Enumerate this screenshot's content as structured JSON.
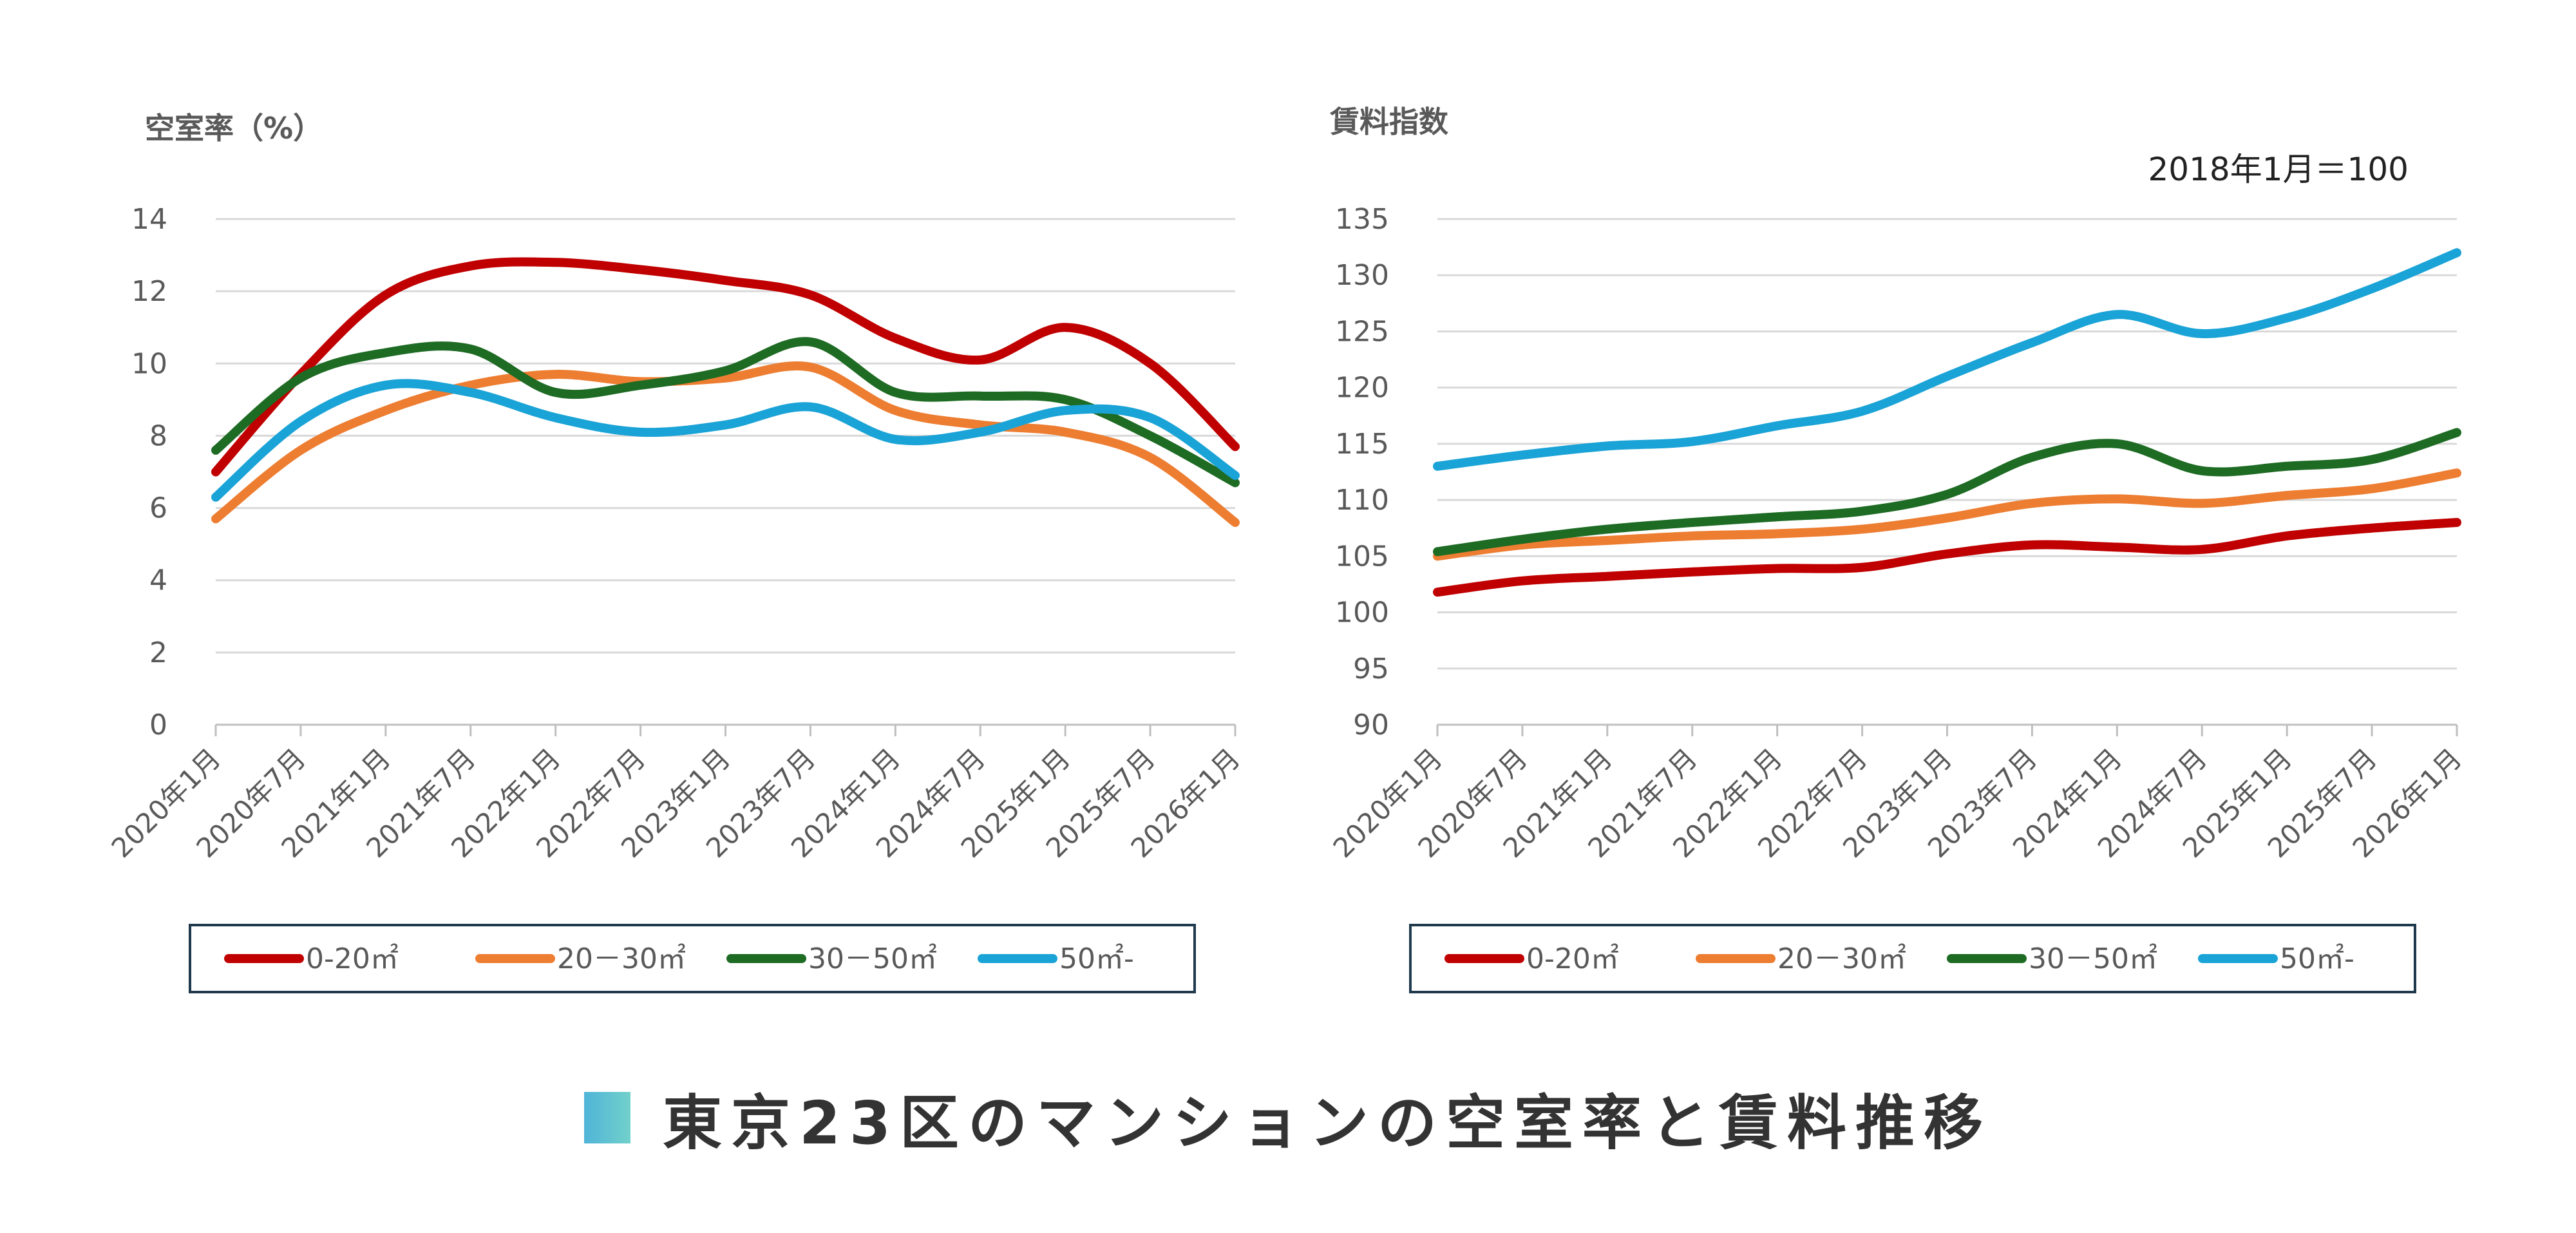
{
  "chart_data": [
    {
      "type": "line",
      "ylabel": "空室率（%）",
      "ylim": [
        0,
        14
      ],
      "yticks": [
        "0",
        "2",
        "4",
        "6",
        "8",
        "10",
        "12",
        "14"
      ],
      "x": [
        "2020年1月",
        "2020年7月",
        "2021年1月",
        "2021年7月",
        "2022年1月",
        "2022年7月",
        "2023年1月",
        "2023年7月",
        "2024年1月",
        "2024年7月",
        "2025年1月",
        "2025年7月",
        "2026年1月"
      ],
      "grid": true,
      "legend": "bottom",
      "series": [
        {
          "name": "0-20㎡",
          "color": "#c00000",
          "values": [
            7.0,
            9.7,
            11.9,
            12.7,
            12.8,
            12.6,
            12.3,
            11.9,
            10.7,
            10.1,
            11.0,
            10.0,
            7.7
          ]
        },
        {
          "name": "20－30㎡",
          "color": "#ed7d31",
          "values": [
            5.7,
            7.6,
            8.7,
            9.4,
            9.7,
            9.5,
            9.6,
            9.9,
            8.7,
            8.3,
            8.1,
            7.4,
            5.6
          ]
        },
        {
          "name": "30－50㎡",
          "color": "#1e6b24",
          "values": [
            7.6,
            9.6,
            10.3,
            10.4,
            9.2,
            9.4,
            9.8,
            10.6,
            9.2,
            9.1,
            9.0,
            8.0,
            6.7
          ]
        },
        {
          "name": "50㎡-",
          "color": "#1aa3d6",
          "values": [
            6.3,
            8.4,
            9.4,
            9.2,
            8.5,
            8.1,
            8.3,
            8.8,
            7.9,
            8.1,
            8.7,
            8.5,
            6.9
          ]
        }
      ]
    },
    {
      "type": "line",
      "ylabel": "賃料指数",
      "annotation": "2018年1月＝100",
      "ylim": [
        90,
        135
      ],
      "yticks": [
        "90",
        "95",
        "100",
        "105",
        "110",
        "115",
        "120",
        "125",
        "130",
        "135"
      ],
      "x": [
        "2020年1月",
        "2020年7月",
        "2021年1月",
        "2021年7月",
        "2022年1月",
        "2022年7月",
        "2023年1月",
        "2023年7月",
        "2024年1月",
        "2024年7月",
        "2025年1月",
        "2025年7月",
        "2026年1月"
      ],
      "grid": true,
      "legend": "bottom",
      "series": [
        {
          "name": "0-20㎡",
          "color": "#c00000",
          "values": [
            101.8,
            102.8,
            103.2,
            103.6,
            103.9,
            104.0,
            105.2,
            106.0,
            105.8,
            105.6,
            106.8,
            107.5,
            108.0
          ]
        },
        {
          "name": "20－30㎡",
          "color": "#ed7d31",
          "values": [
            105.0,
            106.0,
            106.4,
            106.8,
            107.0,
            107.4,
            108.4,
            109.7,
            110.1,
            109.7,
            110.4,
            111.0,
            112.4
          ]
        },
        {
          "name": "30－50㎡",
          "color": "#1e6b24",
          "values": [
            105.4,
            106.5,
            107.4,
            108.0,
            108.5,
            109.0,
            110.5,
            113.8,
            115.0,
            112.6,
            113.0,
            113.6,
            116.0
          ]
        },
        {
          "name": "50㎡-",
          "color": "#1aa3d6",
          "values": [
            113.0,
            114.0,
            114.8,
            115.2,
            116.6,
            117.9,
            121.0,
            124.0,
            126.5,
            124.8,
            126.2,
            128.8,
            132.0
          ]
        }
      ]
    }
  ],
  "footer": {
    "title": "東京23区のマンションの空室率と賃料推移",
    "accent_colors": [
      "#4fb4d8",
      "#72d1cb"
    ]
  }
}
